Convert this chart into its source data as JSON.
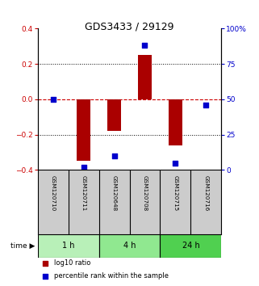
{
  "title": "GDS3433 / 29129",
  "samples": [
    "GSM120710",
    "GSM120711",
    "GSM120648",
    "GSM120708",
    "GSM120715",
    "GSM120716"
  ],
  "log10_ratio": [
    0.0,
    -0.35,
    -0.18,
    0.25,
    -0.26,
    0.0
  ],
  "percentile_rank": [
    50,
    2,
    10,
    88,
    5,
    46
  ],
  "groups": [
    {
      "label": "1 h",
      "samples": [
        0,
        1
      ],
      "color": "#b8f0b8"
    },
    {
      "label": "4 h",
      "samples": [
        2,
        3
      ],
      "color": "#90e890"
    },
    {
      "label": "24 h",
      "samples": [
        4,
        5
      ],
      "color": "#50d050"
    }
  ],
  "ylim_left": [
    -0.4,
    0.4
  ],
  "ylim_right": [
    0,
    100
  ],
  "yticks_left": [
    -0.4,
    -0.2,
    0.0,
    0.2,
    0.4
  ],
  "yticks_right": [
    0,
    25,
    50,
    75,
    100
  ],
  "ytick_labels_right": [
    "0",
    "25",
    "50",
    "75",
    "100%"
  ],
  "bar_color": "#aa0000",
  "dot_color": "#0000cc",
  "bar_width": 0.45,
  "dot_size": 20,
  "background_color": "#ffffff",
  "plot_bg_color": "#ffffff",
  "label_color_left": "#cc0000",
  "label_color_right": "#0000cc",
  "hline_color": "#cc0000",
  "grid_color": "#000000",
  "sample_box_color": "#cccccc",
  "time_label": "time",
  "legend_red": "log10 ratio",
  "legend_blue": "percentile rank within the sample"
}
